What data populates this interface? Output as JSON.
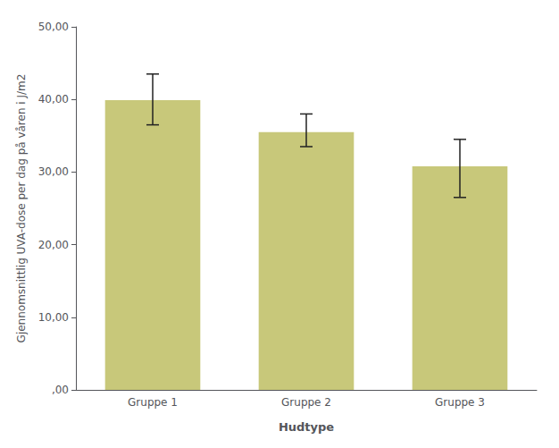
{
  "chart_data": {
    "type": "bar",
    "categories": [
      "Gruppe 1",
      "Gruppe 2",
      "Gruppe 3"
    ],
    "values": [
      39.9,
      35.5,
      30.8
    ],
    "error_upper": [
      3.6,
      2.5,
      3.7
    ],
    "error_lower": [
      3.4,
      2.0,
      4.3
    ],
    "color": "#c8c87a",
    "xlabel": "Hudtype",
    "ylabel": "Gjennomsnittlig UVA-dose per dag på våren i J/m2",
    "ylim": [
      0,
      50
    ],
    "yticks": [
      {
        "value": 0,
        "label": ",00"
      },
      {
        "value": 10,
        "label": "10,00"
      },
      {
        "value": 20,
        "label": "20,00"
      },
      {
        "value": 30,
        "label": "30,00"
      },
      {
        "value": 40,
        "label": "40,00"
      },
      {
        "value": 50,
        "label": "50,00"
      }
    ],
    "grid": false
  }
}
